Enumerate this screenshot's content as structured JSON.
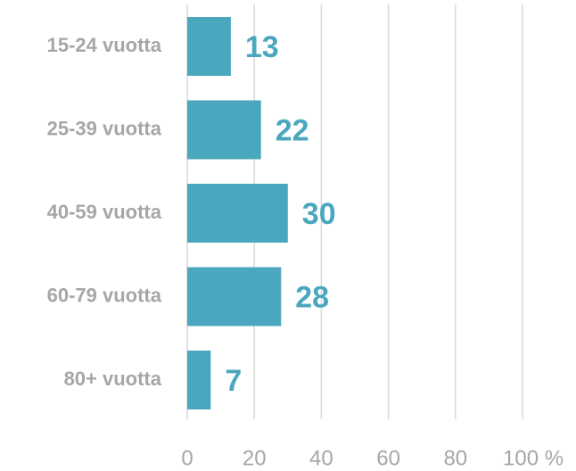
{
  "chart_data": {
    "type": "bar",
    "orientation": "horizontal",
    "categories": [
      "15-24 vuotta",
      "25-39 vuotta",
      "40-59 vuotta",
      "60-79 vuotta",
      "80+ vuotta"
    ],
    "values": [
      13,
      22,
      30,
      28,
      7
    ],
    "color": "#4ba7bd",
    "xlim": [
      0,
      100
    ],
    "xticks": [
      0,
      20,
      40,
      60,
      80,
      {
        "value": 100,
        "label": "100 %"
      }
    ],
    "grid": true
  }
}
